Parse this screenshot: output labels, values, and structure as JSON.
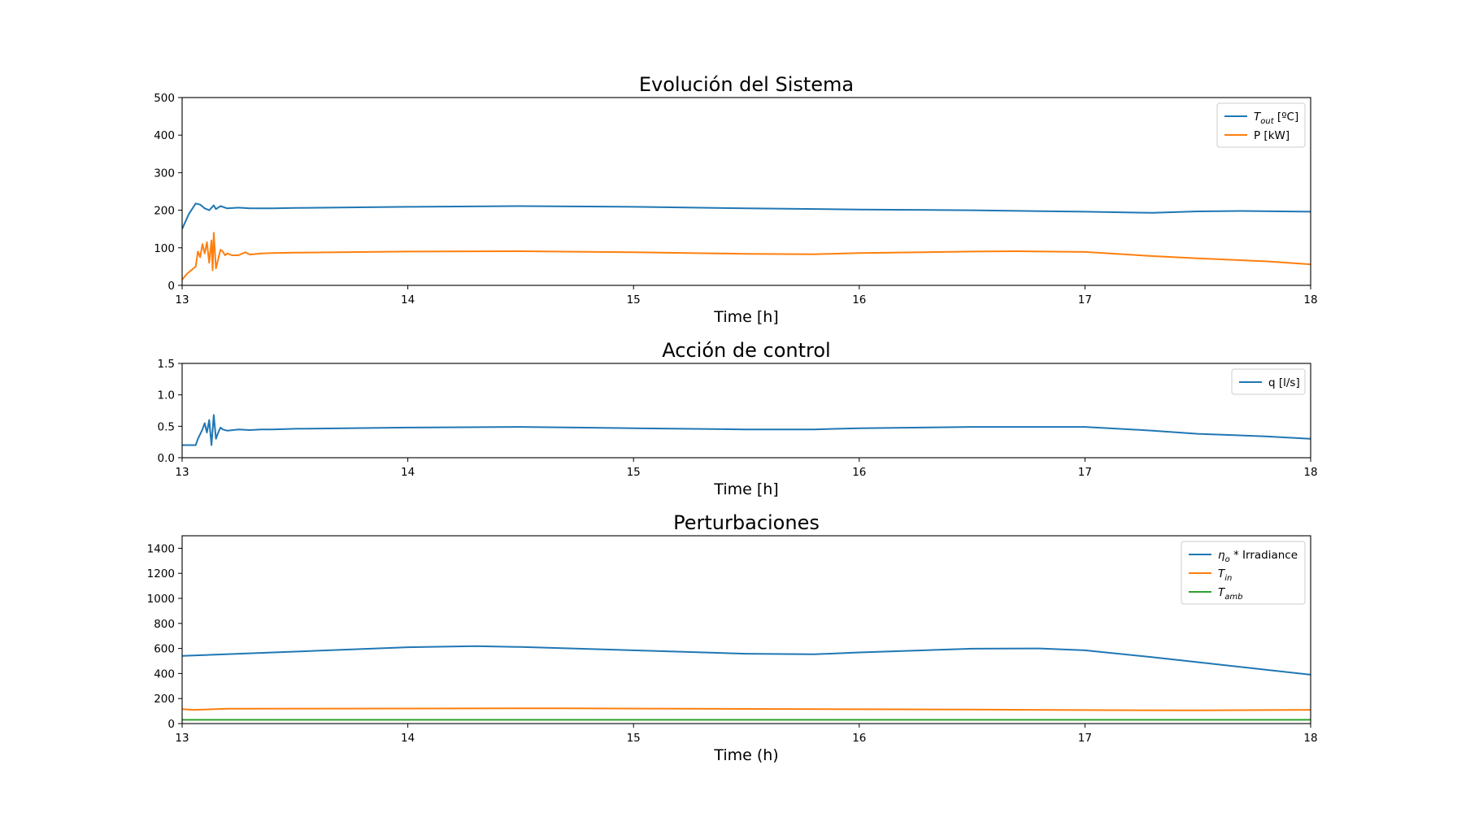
{
  "chart_data": [
    {
      "type": "line",
      "title": "Evolución del Sistema",
      "xlabel": "Time [h]",
      "ylabel": "",
      "xlim": [
        13,
        18
      ],
      "ylim": [
        0,
        500
      ],
      "x_ticks": [
        "13",
        "14",
        "15",
        "16",
        "17",
        "18"
      ],
      "y_ticks": [
        "0",
        "100",
        "200",
        "300",
        "400",
        "500"
      ],
      "grid": false,
      "legend_position": "top-right",
      "series": [
        {
          "name": "T_out [ºC]",
          "label_main": "T",
          "label_sub": "out",
          "label_suffix": " [ºC]",
          "color": "#1f77b4",
          "x": [
            13.0,
            13.03,
            13.06,
            13.08,
            13.1,
            13.12,
            13.14,
            13.15,
            13.17,
            13.2,
            13.25,
            13.3,
            13.4,
            13.5,
            14.0,
            14.5,
            15.0,
            15.5,
            16.0,
            16.5,
            17.0,
            17.3,
            17.5,
            17.7,
            18.0
          ],
          "y": [
            150,
            190,
            218,
            215,
            205,
            200,
            213,
            203,
            211,
            205,
            207,
            205,
            205,
            206,
            209,
            211,
            209,
            205,
            202,
            200,
            196,
            193,
            197,
            198,
            196
          ]
        },
        {
          "name": "P [kW]",
          "label_main": "P [kW]",
          "label_sub": "",
          "label_suffix": "",
          "color": "#ff7f0e",
          "x": [
            13.0,
            13.02,
            13.04,
            13.06,
            13.07,
            13.08,
            13.09,
            13.1,
            13.11,
            13.12,
            13.13,
            13.135,
            13.14,
            13.15,
            13.16,
            13.17,
            13.18,
            13.19,
            13.2,
            13.22,
            13.25,
            13.28,
            13.3,
            13.35,
            13.4,
            13.5,
            14.0,
            14.5,
            15.0,
            15.5,
            15.8,
            16.0,
            16.5,
            16.7,
            17.0,
            17.3,
            17.5,
            17.8,
            18.0
          ],
          "y": [
            15,
            30,
            40,
            50,
            90,
            75,
            110,
            85,
            115,
            60,
            120,
            40,
            140,
            45,
            70,
            95,
            90,
            80,
            85,
            80,
            80,
            88,
            82,
            85,
            86,
            87,
            90,
            91,
            88,
            84,
            83,
            86,
            90,
            91,
            89,
            78,
            72,
            64,
            56
          ]
        }
      ]
    },
    {
      "type": "line",
      "title": "Acción de control",
      "xlabel": "Time [h]",
      "ylabel": "",
      "xlim": [
        13,
        18
      ],
      "ylim": [
        0,
        1.5
      ],
      "x_ticks": [
        "13",
        "14",
        "15",
        "16",
        "17",
        "18"
      ],
      "y_ticks": [
        "0.0",
        "0.5",
        "1.0",
        "1.5"
      ],
      "grid": false,
      "legend_position": "top-right",
      "series": [
        {
          "name": "q [l/s]",
          "label_main": "q [l/s]",
          "label_sub": "",
          "label_suffix": "",
          "color": "#1f77b4",
          "x": [
            13.0,
            13.06,
            13.07,
            13.09,
            13.1,
            13.11,
            13.12,
            13.13,
            13.14,
            13.15,
            13.16,
            13.17,
            13.18,
            13.2,
            13.25,
            13.3,
            13.35,
            13.4,
            13.5,
            14.0,
            14.5,
            15.0,
            15.5,
            15.8,
            16.0,
            16.5,
            17.0,
            17.3,
            17.5,
            17.8,
            18.0
          ],
          "y": [
            0.2,
            0.2,
            0.3,
            0.45,
            0.55,
            0.4,
            0.6,
            0.2,
            0.68,
            0.3,
            0.4,
            0.48,
            0.45,
            0.43,
            0.45,
            0.44,
            0.45,
            0.45,
            0.46,
            0.48,
            0.49,
            0.47,
            0.45,
            0.45,
            0.47,
            0.49,
            0.49,
            0.43,
            0.38,
            0.34,
            0.3
          ]
        }
      ]
    },
    {
      "type": "line",
      "title": "Perturbaciones",
      "xlabel": "Time (h)",
      "ylabel": "",
      "xlim": [
        13,
        18
      ],
      "ylim": [
        0,
        1500
      ],
      "x_ticks": [
        "13",
        "14",
        "15",
        "16",
        "17",
        "18"
      ],
      "y_ticks": [
        "0",
        "200",
        "400",
        "600",
        "800",
        "1000",
        "1200",
        "1400"
      ],
      "grid": false,
      "legend_position": "top-right",
      "series": [
        {
          "name": "η_o * Irradiance",
          "label_main": "η",
          "label_sub": "o",
          "label_suffix": " * Irradiance",
          "color": "#1f77b4",
          "x": [
            13.0,
            13.5,
            14.0,
            14.3,
            14.5,
            15.0,
            15.5,
            15.8,
            16.0,
            16.5,
            16.8,
            17.0,
            17.3,
            17.5,
            17.8,
            18.0
          ],
          "y": [
            540,
            575,
            610,
            618,
            612,
            585,
            558,
            553,
            568,
            598,
            600,
            585,
            530,
            490,
            430,
            390
          ]
        },
        {
          "name": "T_in",
          "label_main": "T",
          "label_sub": "in",
          "label_suffix": "",
          "color": "#ff7f0e",
          "x": [
            13.0,
            13.05,
            13.2,
            14.0,
            14.7,
            15.5,
            16.5,
            17.0,
            17.5,
            18.0
          ],
          "y": [
            115,
            110,
            118,
            120,
            122,
            117,
            112,
            108,
            105,
            110
          ]
        },
        {
          "name": "T_amb",
          "label_main": "T",
          "label_sub": "amb",
          "label_suffix": "",
          "color": "#2ca02c",
          "x": [
            13.0,
            18.0
          ],
          "y": [
            30,
            30
          ]
        }
      ]
    }
  ]
}
